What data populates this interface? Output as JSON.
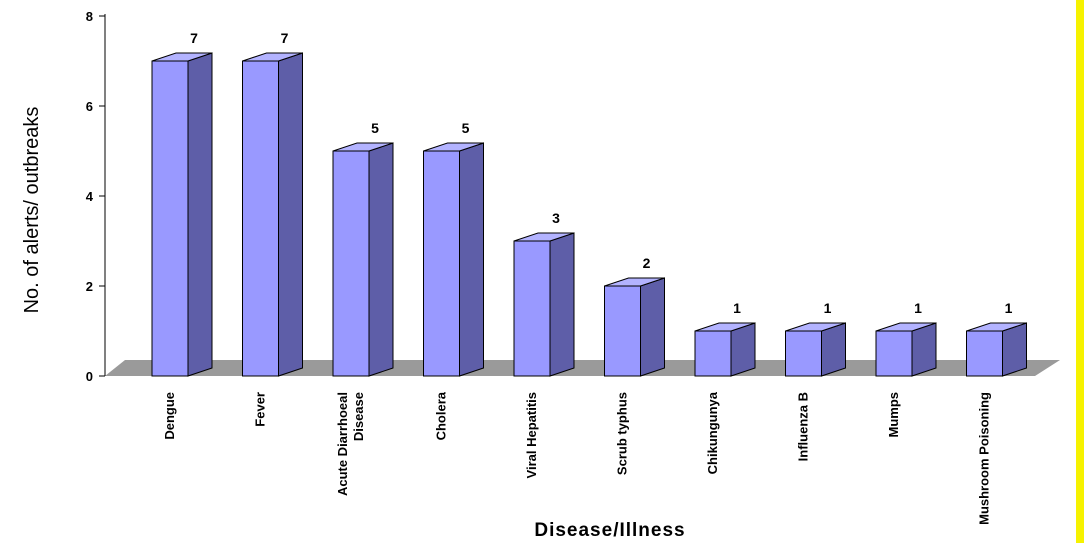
{
  "chart_data": {
    "type": "bar",
    "categories": [
      "Dengue",
      "Fever",
      "Acute Diarrhoeal Disease",
      "Cholera",
      "Viral Hepatitis",
      "Scrub typhus",
      "Chikungunya",
      "Influenza B",
      "Mumps",
      "Mushroom Poisoning"
    ],
    "category_lines": [
      [
        "Dengue"
      ],
      [
        "Fever"
      ],
      [
        "Acute Diarrhoeal",
        "Disease"
      ],
      [
        "Cholera"
      ],
      [
        "Viral Hepatitis"
      ],
      [
        "Scrub typhus"
      ],
      [
        "Chikungunya"
      ],
      [
        "Influenza B"
      ],
      [
        "Mumps"
      ],
      [
        "Mushroom Poisoning"
      ]
    ],
    "values": [
      7,
      7,
      5,
      5,
      3,
      2,
      1,
      1,
      1,
      1
    ],
    "data_labels": [
      "7",
      "7",
      "5",
      "5",
      "3",
      "2",
      "1",
      "1",
      "1",
      "1"
    ],
    "xlabel": "Disease/Illness",
    "ylabel": "No. of alerts/ outbreaks",
    "ylim": [
      0,
      8
    ],
    "yticks": [
      "0",
      "2",
      "4",
      "6",
      "8"
    ],
    "grid": false,
    "style": "3d-column",
    "colors": {
      "bar_front": "#9999ff",
      "bar_side": "#5e5ea8",
      "bar_top": "#b3b3ff",
      "bar_outline": "#000000",
      "floor": "#9a9a9a",
      "frame": "#f6f200"
    }
  }
}
